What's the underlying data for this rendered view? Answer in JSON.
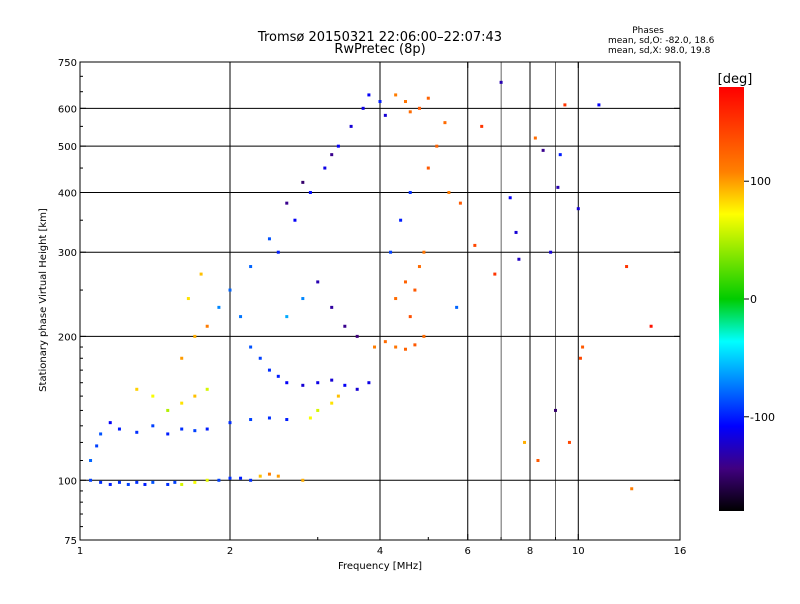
{
  "title": {
    "line1": "Tromsø 20150321 22:06:00–22:07:43",
    "line2": "RwPretec (8p)"
  },
  "phase_box": {
    "heading": "Phases",
    "line_o": "mean, sd,O: -82.0, 18.6",
    "line_x": "mean, sd,X:  98.0, 19.8"
  },
  "colorbar": {
    "unit_label": "[deg]",
    "ticks": [
      {
        "value": 100,
        "label": "100"
      },
      {
        "value": 0,
        "label": "0"
      },
      {
        "value": -100,
        "label": "-100"
      }
    ],
    "range": [
      -180,
      180
    ]
  },
  "chart_data": {
    "type": "scatter",
    "xlabel": "Frequency [MHz]",
    "ylabel": "Stationary phase Virtual Height [km]",
    "x_scale": "log",
    "y_scale": "log",
    "xlim": [
      1,
      16
    ],
    "ylim": [
      75,
      750
    ],
    "x_ticks": [
      {
        "value": 1,
        "label": "1"
      },
      {
        "value": 2,
        "label": "2"
      },
      {
        "value": 4,
        "label": "4"
      },
      {
        "value": 6,
        "label": "6"
      },
      {
        "value": 8,
        "label": "8"
      },
      {
        "value": 10,
        "label": "10"
      },
      {
        "value": 16,
        "label": "16"
      }
    ],
    "x_minor": [
      3,
      5,
      7,
      9
    ],
    "y_ticks": [
      {
        "value": 75,
        "label": "75"
      },
      {
        "value": 100,
        "label": "100"
      },
      {
        "value": 200,
        "label": "200"
      },
      {
        "value": 300,
        "label": "300"
      },
      {
        "value": 400,
        "label": "400"
      },
      {
        "value": 500,
        "label": "500"
      },
      {
        "value": 600,
        "label": "600"
      },
      {
        "value": 750,
        "label": "750"
      }
    ],
    "grid_y": [
      100,
      200,
      300,
      400,
      500,
      600
    ],
    "grid_x": [
      2,
      4,
      6,
      8,
      10
    ],
    "grid_x_thin": [
      7,
      9
    ],
    "grid": true,
    "colormap": "rainbow",
    "color_range": [
      -180,
      180
    ],
    "points": [
      {
        "x": 1.05,
        "y": 100,
        "c": -90
      },
      {
        "x": 1.1,
        "y": 99,
        "c": -95
      },
      {
        "x": 1.15,
        "y": 98,
        "c": -100
      },
      {
        "x": 1.2,
        "y": 99,
        "c": -95
      },
      {
        "x": 1.25,
        "y": 98,
        "c": -90
      },
      {
        "x": 1.3,
        "y": 99,
        "c": -95
      },
      {
        "x": 1.35,
        "y": 98,
        "c": -100
      },
      {
        "x": 1.4,
        "y": 99,
        "c": -85
      },
      {
        "x": 1.5,
        "y": 98,
        "c": -95
      },
      {
        "x": 1.55,
        "y": 99,
        "c": -90
      },
      {
        "x": 1.6,
        "y": 98,
        "c": 60
      },
      {
        "x": 1.7,
        "y": 99,
        "c": 70
      },
      {
        "x": 1.8,
        "y": 100,
        "c": 65
      },
      {
        "x": 1.9,
        "y": 100,
        "c": -90
      },
      {
        "x": 2.0,
        "y": 101,
        "c": -95
      },
      {
        "x": 2.1,
        "y": 101,
        "c": -100
      },
      {
        "x": 2.2,
        "y": 100,
        "c": -95
      },
      {
        "x": 2.3,
        "y": 102,
        "c": 90
      },
      {
        "x": 2.4,
        "y": 103,
        "c": 110
      },
      {
        "x": 2.5,
        "y": 102,
        "c": 100
      },
      {
        "x": 2.8,
        "y": 100,
        "c": 95
      },
      {
        "x": 1.05,
        "y": 110,
        "c": -80
      },
      {
        "x": 1.08,
        "y": 118,
        "c": -90
      },
      {
        "x": 1.1,
        "y": 125,
        "c": -85
      },
      {
        "x": 1.15,
        "y": 132,
        "c": -110
      },
      {
        "x": 1.2,
        "y": 128,
        "c": -100
      },
      {
        "x": 1.3,
        "y": 126,
        "c": -95
      },
      {
        "x": 1.4,
        "y": 130,
        "c": -90
      },
      {
        "x": 1.5,
        "y": 125,
        "c": -100
      },
      {
        "x": 1.6,
        "y": 128,
        "c": -95
      },
      {
        "x": 1.7,
        "y": 127,
        "c": -90
      },
      {
        "x": 1.8,
        "y": 128,
        "c": -100
      },
      {
        "x": 2.0,
        "y": 132,
        "c": -95
      },
      {
        "x": 2.2,
        "y": 134,
        "c": -90
      },
      {
        "x": 2.4,
        "y": 135,
        "c": -95
      },
      {
        "x": 2.6,
        "y": 134,
        "c": -100
      },
      {
        "x": 1.5,
        "y": 140,
        "c": 50
      },
      {
        "x": 1.6,
        "y": 145,
        "c": 80
      },
      {
        "x": 1.7,
        "y": 150,
        "c": 90
      },
      {
        "x": 1.8,
        "y": 155,
        "c": 60
      },
      {
        "x": 1.4,
        "y": 150,
        "c": 70
      },
      {
        "x": 1.3,
        "y": 155,
        "c": 85
      },
      {
        "x": 1.6,
        "y": 180,
        "c": 100
      },
      {
        "x": 1.7,
        "y": 200,
        "c": 95
      },
      {
        "x": 1.8,
        "y": 210,
        "c": 110
      },
      {
        "x": 1.65,
        "y": 240,
        "c": 80
      },
      {
        "x": 1.75,
        "y": 270,
        "c": 90
      },
      {
        "x": 1.9,
        "y": 230,
        "c": -70
      },
      {
        "x": 2.0,
        "y": 250,
        "c": -80
      },
      {
        "x": 2.1,
        "y": 220,
        "c": -75
      },
      {
        "x": 2.2,
        "y": 190,
        "c": -85
      },
      {
        "x": 2.3,
        "y": 180,
        "c": -90
      },
      {
        "x": 2.4,
        "y": 170,
        "c": -95
      },
      {
        "x": 2.5,
        "y": 165,
        "c": -100
      },
      {
        "x": 2.6,
        "y": 160,
        "c": -110
      },
      {
        "x": 2.8,
        "y": 158,
        "c": -120
      },
      {
        "x": 3.0,
        "y": 160,
        "c": -115
      },
      {
        "x": 3.2,
        "y": 162,
        "c": -120
      },
      {
        "x": 3.4,
        "y": 158,
        "c": -110
      },
      {
        "x": 3.6,
        "y": 155,
        "c": -120
      },
      {
        "x": 3.8,
        "y": 160,
        "c": -115
      },
      {
        "x": 3.0,
        "y": 140,
        "c": 60
      },
      {
        "x": 3.2,
        "y": 145,
        "c": 80
      },
      {
        "x": 3.3,
        "y": 150,
        "c": 90
      },
      {
        "x": 2.9,
        "y": 135,
        "c": 70
      },
      {
        "x": 2.5,
        "y": 300,
        "c": -100
      },
      {
        "x": 2.7,
        "y": 350,
        "c": -110
      },
      {
        "x": 2.9,
        "y": 400,
        "c": -105
      },
      {
        "x": 3.1,
        "y": 450,
        "c": -115
      },
      {
        "x": 3.3,
        "y": 500,
        "c": -110
      },
      {
        "x": 3.5,
        "y": 550,
        "c": -120
      },
      {
        "x": 3.7,
        "y": 600,
        "c": -115
      },
      {
        "x": 2.6,
        "y": 380,
        "c": -140
      },
      {
        "x": 2.8,
        "y": 420,
        "c": -150
      },
      {
        "x": 3.2,
        "y": 480,
        "c": -140
      },
      {
        "x": 3.0,
        "y": 260,
        "c": -130
      },
      {
        "x": 3.2,
        "y": 230,
        "c": -135
      },
      {
        "x": 3.4,
        "y": 210,
        "c": -140
      },
      {
        "x": 3.6,
        "y": 200,
        "c": -145
      },
      {
        "x": 2.6,
        "y": 220,
        "c": -60
      },
      {
        "x": 2.8,
        "y": 240,
        "c": -70
      },
      {
        "x": 2.2,
        "y": 280,
        "c": -80
      },
      {
        "x": 2.4,
        "y": 320,
        "c": -85
      },
      {
        "x": 3.8,
        "y": 640,
        "c": -110
      },
      {
        "x": 4.0,
        "y": 620,
        "c": -100
      },
      {
        "x": 4.1,
        "y": 580,
        "c": -120
      },
      {
        "x": 4.3,
        "y": 640,
        "c": 110
      },
      {
        "x": 4.5,
        "y": 620,
        "c": 115
      },
      {
        "x": 4.6,
        "y": 590,
        "c": 120
      },
      {
        "x": 4.8,
        "y": 600,
        "c": 130
      },
      {
        "x": 5.0,
        "y": 630,
        "c": 125
      },
      {
        "x": 3.9,
        "y": 190,
        "c": 110
      },
      {
        "x": 4.1,
        "y": 195,
        "c": 120
      },
      {
        "x": 4.3,
        "y": 190,
        "c": 115
      },
      {
        "x": 4.5,
        "y": 188,
        "c": 125
      },
      {
        "x": 4.7,
        "y": 192,
        "c": 130
      },
      {
        "x": 4.9,
        "y": 200,
        "c": 120
      },
      {
        "x": 4.6,
        "y": 220,
        "c": 135
      },
      {
        "x": 4.7,
        "y": 250,
        "c": 130
      },
      {
        "x": 4.8,
        "y": 280,
        "c": 120
      },
      {
        "x": 4.9,
        "y": 300,
        "c": 115
      },
      {
        "x": 4.5,
        "y": 260,
        "c": 125
      },
      {
        "x": 4.3,
        "y": 240,
        "c": 120
      },
      {
        "x": 4.2,
        "y": 300,
        "c": -90
      },
      {
        "x": 4.4,
        "y": 350,
        "c": -100
      },
      {
        "x": 4.6,
        "y": 400,
        "c": -95
      },
      {
        "x": 5.0,
        "y": 450,
        "c": 130
      },
      {
        "x": 5.2,
        "y": 500,
        "c": 125
      },
      {
        "x": 5.4,
        "y": 560,
        "c": 120
      },
      {
        "x": 5.5,
        "y": 400,
        "c": 110
      },
      {
        "x": 5.7,
        "y": 230,
        "c": -80
      },
      {
        "x": 5.8,
        "y": 380,
        "c": 130
      },
      {
        "x": 6.2,
        "y": 310,
        "c": 140
      },
      {
        "x": 6.4,
        "y": 550,
        "c": 150
      },
      {
        "x": 6.8,
        "y": 270,
        "c": 150
      },
      {
        "x": 7.0,
        "y": 680,
        "c": -130
      },
      {
        "x": 7.3,
        "y": 390,
        "c": -110
      },
      {
        "x": 7.5,
        "y": 330,
        "c": -120
      },
      {
        "x": 7.6,
        "y": 290,
        "c": -125
      },
      {
        "x": 7.8,
        "y": 120,
        "c": 95
      },
      {
        "x": 8.2,
        "y": 520,
        "c": 120
      },
      {
        "x": 8.3,
        "y": 110,
        "c": 130
      },
      {
        "x": 8.5,
        "y": 490,
        "c": -140
      },
      {
        "x": 8.8,
        "y": 300,
        "c": -120
      },
      {
        "x": 9.0,
        "y": 140,
        "c": -150
      },
      {
        "x": 9.1,
        "y": 410,
        "c": -130
      },
      {
        "x": 9.2,
        "y": 480,
        "c": -100
      },
      {
        "x": 9.4,
        "y": 610,
        "c": 150
      },
      {
        "x": 9.6,
        "y": 120,
        "c": 140
      },
      {
        "x": 10.0,
        "y": 370,
        "c": -120
      },
      {
        "x": 10.1,
        "y": 180,
        "c": 140
      },
      {
        "x": 10.2,
        "y": 190,
        "c": 130
      },
      {
        "x": 11.0,
        "y": 610,
        "c": -110
      },
      {
        "x": 12.5,
        "y": 280,
        "c": 150
      },
      {
        "x": 12.8,
        "y": 96,
        "c": 110
      },
      {
        "x": 14.0,
        "y": 210,
        "c": 170
      }
    ]
  }
}
